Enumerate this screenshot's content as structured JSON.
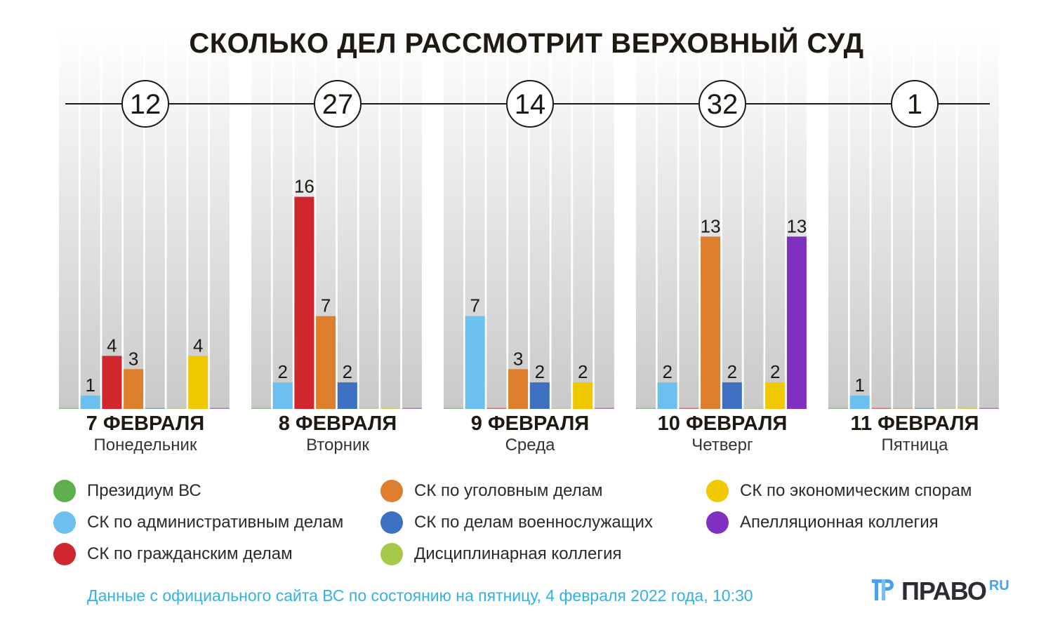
{
  "chart_data": {
    "type": "bar",
    "title": "СКОЛЬКО ДЕЛ РАССМОТРИТ ВЕРХОВНЫЙ СУД",
    "categories": [
      {
        "date": "7 ФЕВРАЛЯ",
        "weekday": "Понедельник",
        "total": 12
      },
      {
        "date": "8 ФЕВРАЛЯ",
        "weekday": "Вторник",
        "total": 27
      },
      {
        "date": "9 ФЕВРАЛЯ",
        "weekday": "Среда",
        "total": 14
      },
      {
        "date": "10 ФЕВРАЛЯ",
        "weekday": "Четверг",
        "total": 32
      },
      {
        "date": "11 ФЕВРАЛЯ",
        "weekday": "Пятница",
        "total": 1
      }
    ],
    "series": [
      {
        "name": "Президиум ВС",
        "color": "#5cb04e",
        "values": [
          0,
          0,
          0,
          0,
          0
        ]
      },
      {
        "name": "СК по административным делам",
        "color": "#6cc0f0",
        "values": [
          1,
          2,
          7,
          2,
          1
        ]
      },
      {
        "name": "СК по гражданским делам",
        "color": "#d0262e",
        "values": [
          4,
          16,
          0,
          0,
          0
        ]
      },
      {
        "name": "СК по уголовным делам",
        "color": "#dd7f2c",
        "values": [
          3,
          7,
          3,
          13,
          0
        ]
      },
      {
        "name": "СК по делам военнослужащих",
        "color": "#3d70c0",
        "values": [
          0,
          2,
          2,
          2,
          0
        ]
      },
      {
        "name": "Дисциплинарная коллегия",
        "color": "#a6c94a",
        "values": [
          0,
          0,
          0,
          0,
          0
        ]
      },
      {
        "name": "СК по экономическим спорам",
        "color": "#efc800",
        "values": [
          4,
          0,
          2,
          2,
          0
        ]
      },
      {
        "name": "Апелляционная коллегия",
        "color": "#8030c0",
        "values": [
          0,
          0,
          0,
          13,
          0
        ]
      }
    ],
    "legend_placement": "bottom",
    "grid": false
  },
  "footer": {
    "source": "Данные с официального сайта ВС по состоянию на пятницу, 4 февраля 2022 года, 10:30",
    "logo_word": "ПРАВО",
    "logo_suffix": "RU"
  }
}
